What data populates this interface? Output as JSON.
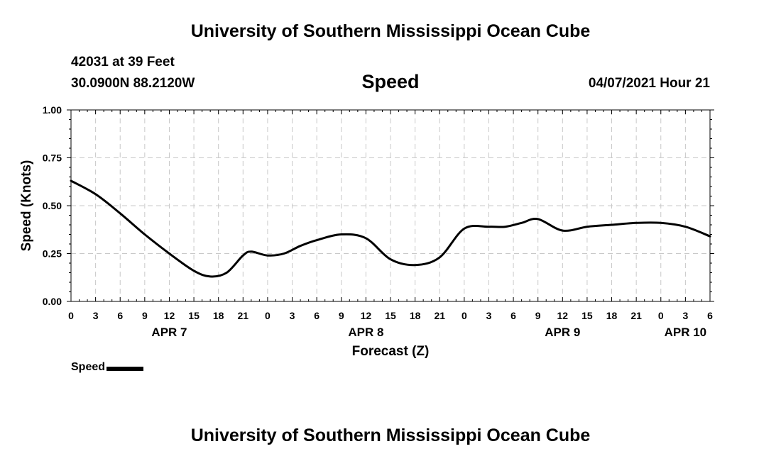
{
  "header": {
    "title_top": "University of Southern Mississippi Ocean Cube",
    "station": "42031 at 39 Feet",
    "coords": "30.0900N  88.2120W",
    "chart_title": "Speed",
    "datetime": "04/07/2021 Hour 21",
    "title_bottom": "University of Southern Mississippi Ocean Cube"
  },
  "legend": {
    "label": "Speed"
  },
  "chart_data": {
    "type": "line",
    "title": "Speed",
    "xlabel": "Forecast (Z)",
    "ylabel": "Speed (Knots)",
    "ylim": [
      0,
      1
    ],
    "xlim": [
      0,
      78
    ],
    "grid": true,
    "yticks": [
      "0.00",
      "0.25",
      "0.50",
      "0.75",
      "1.00"
    ],
    "ytick_values": [
      0,
      0.25,
      0.5,
      0.75,
      1.0
    ],
    "xticks": [
      "0",
      "3",
      "6",
      "9",
      "12",
      "15",
      "18",
      "21",
      "0",
      "3",
      "6",
      "9",
      "12",
      "15",
      "18",
      "21",
      "0",
      "3",
      "6",
      "9",
      "12",
      "15",
      "18",
      "21",
      "0",
      "3",
      "6"
    ],
    "date_labels": [
      {
        "label": "APR 7",
        "hour": 12
      },
      {
        "label": "APR 8",
        "hour": 36
      },
      {
        "label": "APR 9",
        "hour": 60
      },
      {
        "label": "APR 10",
        "hour": 75
      }
    ],
    "series": [
      {
        "name": "Speed",
        "x": [
          0,
          3,
          6,
          9,
          12,
          15,
          17,
          19,
          21,
          22,
          24,
          26,
          28,
          30,
          33,
          36,
          39,
          42,
          45,
          48,
          51,
          53,
          55,
          57,
          60,
          63,
          66,
          69,
          72,
          75,
          78
        ],
        "values": [
          0.63,
          0.56,
          0.46,
          0.35,
          0.25,
          0.16,
          0.13,
          0.15,
          0.24,
          0.26,
          0.24,
          0.25,
          0.29,
          0.32,
          0.35,
          0.33,
          0.22,
          0.19,
          0.23,
          0.38,
          0.39,
          0.39,
          0.41,
          0.43,
          0.37,
          0.39,
          0.4,
          0.41,
          0.41,
          0.39,
          0.34
        ]
      }
    ]
  }
}
